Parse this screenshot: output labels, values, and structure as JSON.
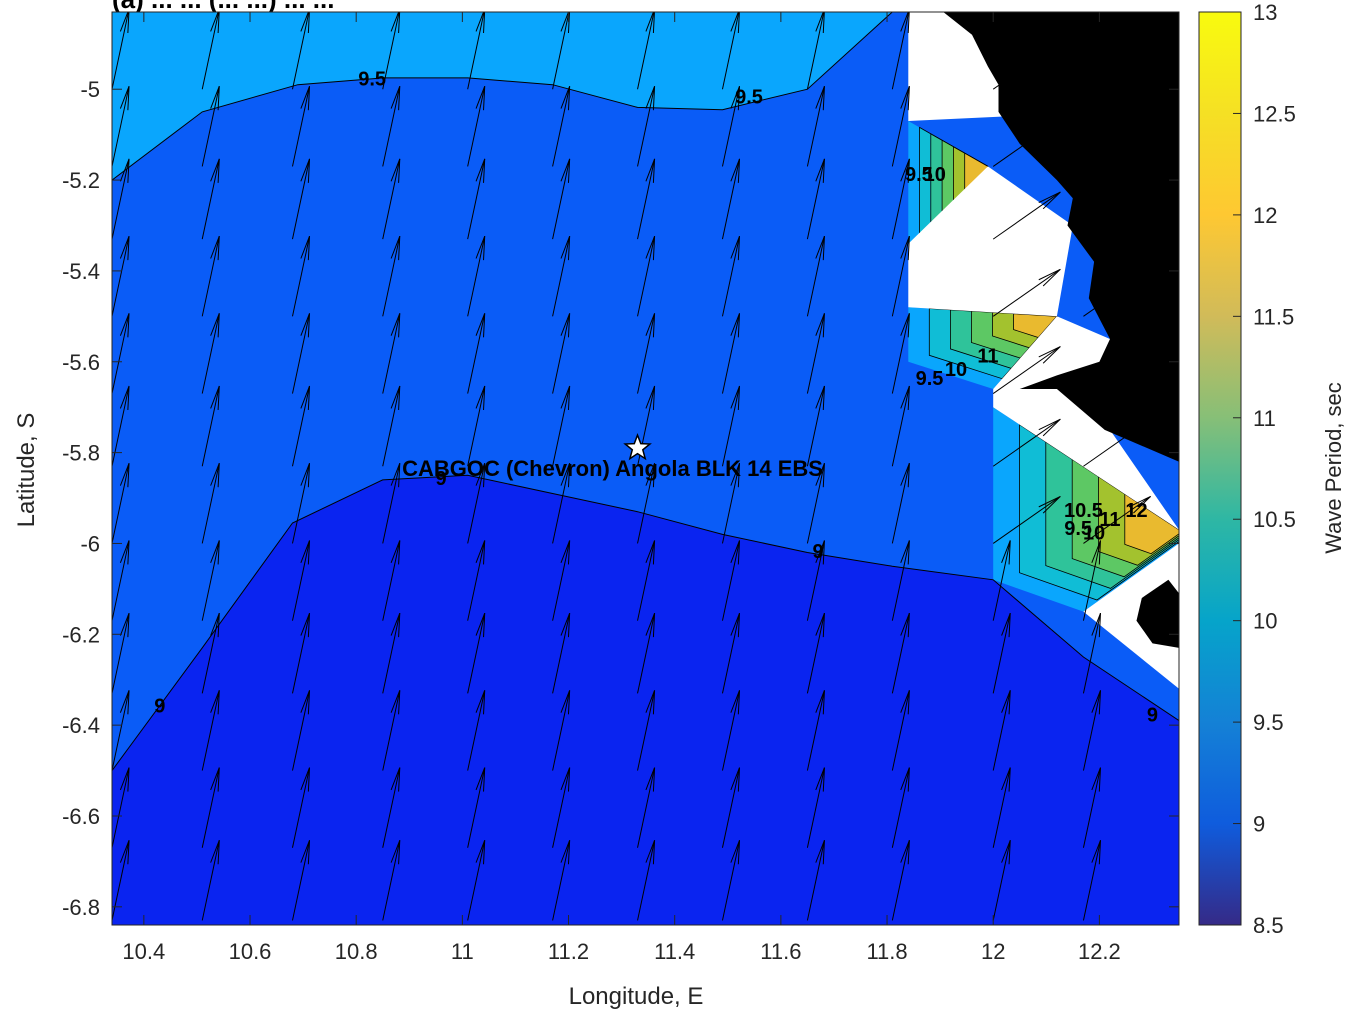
{
  "chart_data": {
    "type": "heatmap",
    "title": "(a) ... ... (... ...) ... ...",
    "xlabel": "Longitude, E",
    "ylabel": "Latitude, S",
    "xlim": [
      10.34,
      12.35
    ],
    "ylim": [
      -6.84,
      -4.83
    ],
    "x_ticks": [
      10.4,
      10.6,
      10.8,
      11,
      11.2,
      11.4,
      11.6,
      11.8,
      12,
      12.2
    ],
    "y_ticks": [
      -5,
      -5.2,
      -5.4,
      -5.6,
      -5.8,
      -6,
      -6.2,
      -6.4,
      -6.6,
      -6.8
    ],
    "colorbar": {
      "label": "Wave Period, sec",
      "lim": [
        8.5,
        13
      ],
      "ticks": [
        8.5,
        9,
        9.5,
        10,
        10.5,
        11,
        11.5,
        12,
        12.5,
        13
      ],
      "colormap": "parula"
    },
    "fill_colors": {
      "band_lt_9": "#0a24f0",
      "band_9_9_5": "#0a5cf7",
      "band_9_5_10": "#0aa6fd",
      "band_10_10_5": "#10bdd6",
      "band_10_5_11": "#2fc39a",
      "band_11_11_5": "#5dc864",
      "band_11_5_12": "#a3c22e",
      "band_12_12_5": "#e9ba2f",
      "band_12_5_13": "#f7df1d",
      "land": "#000000",
      "no_data": "#ffffff",
      "arrows": "#000000"
    },
    "contours": [
      {
        "level": 9.5,
        "points": [
          [
            10.34,
            -5.2
          ],
          [
            10.51,
            -5.05
          ],
          [
            10.69,
            -4.99
          ],
          [
            10.85,
            -4.975
          ],
          [
            11.01,
            -4.975
          ],
          [
            11.17,
            -4.99
          ],
          [
            11.33,
            -5.04
          ],
          [
            11.49,
            -5.045
          ],
          [
            11.65,
            -5.0
          ],
          [
            11.81,
            -4.83
          ]
        ]
      },
      {
        "level": 9,
        "points": [
          [
            10.34,
            -6.5
          ],
          [
            10.51,
            -6.23
          ],
          [
            10.68,
            -5.955
          ],
          [
            10.85,
            -5.86
          ],
          [
            11.01,
            -5.85
          ],
          [
            11.17,
            -5.89
          ],
          [
            11.33,
            -5.93
          ],
          [
            11.49,
            -5.98
          ],
          [
            11.65,
            -6.02
          ],
          [
            11.81,
            -6.05
          ],
          [
            12.0,
            -6.08
          ],
          [
            12.17,
            -6.25
          ],
          [
            12.35,
            -6.39
          ]
        ]
      }
    ],
    "contour_labels": [
      {
        "text": "9.5",
        "lon": 10.83,
        "lat": -4.98
      },
      {
        "text": "9.5",
        "lon": 11.54,
        "lat": -5.02
      },
      {
        "text": "9.5",
        "lon": 11.86,
        "lat": -5.19
      },
      {
        "text": "10",
        "lon": 11.89,
        "lat": -5.19
      },
      {
        "text": "9.5",
        "lon": 11.88,
        "lat": -5.64
      },
      {
        "text": "10",
        "lon": 11.93,
        "lat": -5.62
      },
      {
        "text": "11",
        "lon": 11.99,
        "lat": -5.59
      },
      {
        "text": "12",
        "lon": 12.27,
        "lat": -5.93
      },
      {
        "text": "10.5",
        "lon": 12.17,
        "lat": -5.93
      },
      {
        "text": "11",
        "lon": 12.22,
        "lat": -5.95
      },
      {
        "text": "9.5",
        "lon": 12.16,
        "lat": -5.97
      },
      {
        "text": "10",
        "lon": 12.19,
        "lat": -5.98
      },
      {
        "text": "9",
        "lon": 10.96,
        "lat": -5.86
      },
      {
        "text": "9",
        "lon": 11.67,
        "lat": -6.02
      },
      {
        "text": "9",
        "lon": 10.43,
        "lat": -6.36
      },
      {
        "text": "9",
        "lon": 12.3,
        "lat": -6.38
      }
    ],
    "site": {
      "label": "CABGOC (Chevron)  Angola BLK 14  EBS",
      "lon": 11.33,
      "lat": -5.79
    },
    "vector_grid": {
      "lons": [
        10.34,
        10.51,
        10.68,
        10.85,
        11.01,
        11.17,
        11.33,
        11.49,
        11.65,
        11.81,
        12.0,
        12.17,
        12.35
      ],
      "lats": [
        -4.83,
        -5.0,
        -5.17,
        -5.33,
        -5.5,
        -5.67,
        -5.83,
        -6.0,
        -6.17,
        -6.33,
        -6.5,
        -6.67,
        -6.83
      ],
      "direction_deg_from_north": 12,
      "nearshore_direction_deg_from_north": 55
    }
  }
}
